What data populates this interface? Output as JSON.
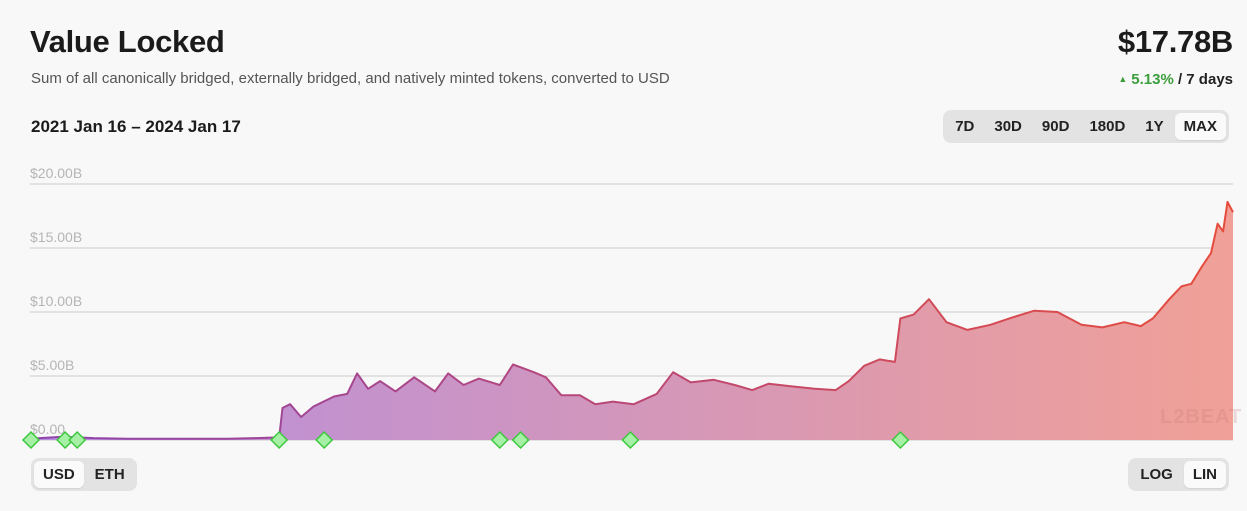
{
  "header": {
    "title": "Value Locked",
    "subtitle": "Sum of all canonically bridged, externally bridged, and natively minted tokens, converted to USD",
    "total": "$17.78B",
    "change_pct": "5.13%",
    "change_period": " / 7 days",
    "change_arrow": "▲"
  },
  "date_range": "2021 Jan 16 – 2024 Jan 17",
  "timeframes": [
    "7D",
    "30D",
    "90D",
    "180D",
    "1Y",
    "MAX"
  ],
  "timeframe_selected": "MAX",
  "currency": {
    "options": [
      "USD",
      "ETH"
    ],
    "selected": "USD"
  },
  "scale": {
    "options": [
      "LOG",
      "LIN"
    ],
    "selected": "LIN"
  },
  "watermark": "L2BEAT",
  "colors": {
    "line_start": "#8e44ad",
    "line_end": "#e74c3c",
    "fill_start": "#b58ddf",
    "fill_end": "#f0a097",
    "milestone_fill": "#a6f0a6",
    "milestone_stroke": "#3ec73e",
    "gridline": "#cccccc",
    "positive": "#3c9e3c"
  },
  "chart_data": {
    "type": "area",
    "title": "Value Locked",
    "ylabel": "USD",
    "ylim": [
      0,
      20
    ],
    "unit": "B USD",
    "y_ticks": [
      "$0.00",
      "$5.00B",
      "$10.00B",
      "$15.00B",
      "$20.00B"
    ],
    "x_range": [
      "2021-01-16",
      "2024-01-17"
    ],
    "series": [
      {
        "name": "",
        "x": [
          "2021-01-16",
          "2021-02-15",
          "2021-03-15",
          "2021-04-15",
          "2021-05-15",
          "2021-06-15",
          "2021-07-15",
          "2021-08-10",
          "2021-08-31",
          "2021-09-03",
          "2021-09-10",
          "2021-09-20",
          "2021-10-01",
          "2021-10-20",
          "2021-11-01",
          "2021-11-10",
          "2021-11-20",
          "2021-12-01",
          "2021-12-15",
          "2022-01-01",
          "2022-01-20",
          "2022-02-01",
          "2022-02-15",
          "2022-03-01",
          "2022-03-20",
          "2022-04-01",
          "2022-04-20",
          "2022-05-01",
          "2022-05-15",
          "2022-06-01",
          "2022-06-15",
          "2022-07-01",
          "2022-07-20",
          "2022-08-10",
          "2022-08-25",
          "2022-09-10",
          "2022-10-01",
          "2022-10-20",
          "2022-11-05",
          "2022-11-20",
          "2022-12-10",
          "2023-01-01",
          "2023-01-20",
          "2023-02-01",
          "2023-02-15",
          "2023-03-01",
          "2023-03-15",
          "2023-03-20",
          "2023-04-01",
          "2023-04-15",
          "2023-05-01",
          "2023-05-20",
          "2023-06-10",
          "2023-07-01",
          "2023-07-20",
          "2023-08-10",
          "2023-09-01",
          "2023-09-20",
          "2023-10-10",
          "2023-10-25",
          "2023-11-05",
          "2023-11-20",
          "2023-12-01",
          "2023-12-10",
          "2023-12-20",
          "2023-12-28",
          "2024-01-03",
          "2024-01-08",
          "2024-01-12",
          "2024-01-17"
        ],
        "values": [
          0.1,
          0.25,
          0.15,
          0.1,
          0.1,
          0.1,
          0.1,
          0.15,
          0.2,
          2.5,
          2.8,
          1.8,
          2.6,
          3.4,
          3.6,
          5.2,
          4.0,
          4.6,
          3.8,
          4.9,
          3.8,
          5.2,
          4.3,
          4.8,
          4.3,
          5.9,
          5.3,
          4.9,
          3.5,
          3.5,
          2.8,
          3.0,
          2.8,
          3.6,
          5.3,
          4.5,
          4.7,
          4.3,
          3.9,
          4.4,
          4.2,
          4.0,
          3.9,
          4.6,
          5.8,
          6.3,
          6.1,
          9.5,
          9.8,
          11.0,
          9.2,
          8.6,
          9.0,
          9.6,
          10.1,
          10.0,
          9.0,
          8.8,
          9.2,
          8.9,
          9.5,
          11.0,
          12.0,
          12.2,
          13.6,
          14.6,
          16.9,
          16.3,
          18.6,
          17.8
        ]
      }
    ],
    "milestones": [
      "2021-01-16",
      "2021-02-17",
      "2021-02-28",
      "2021-08-31",
      "2021-10-11",
      "2022-03-20",
      "2022-04-08",
      "2022-07-17",
      "2023-03-20"
    ]
  }
}
